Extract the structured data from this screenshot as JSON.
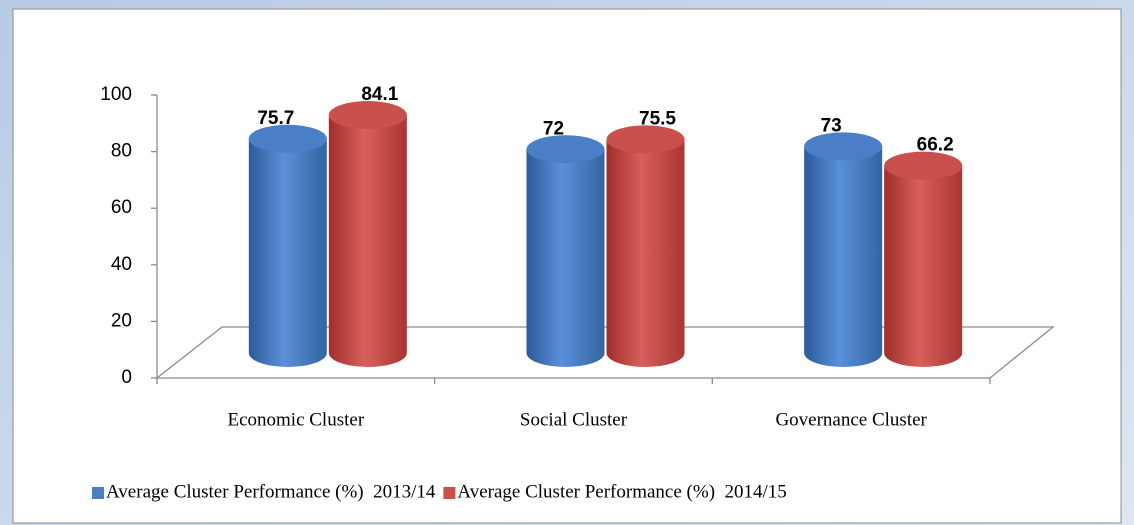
{
  "chart_data": {
    "type": "cylinder-bar",
    "categories": [
      "Economic Cluster",
      "Social Cluster",
      "Governance Cluster"
    ],
    "series": [
      {
        "name": "Average Cluster Performance (%)  2013/14",
        "color": "#4a7fc8",
        "values": [
          75.7,
          72,
          73
        ]
      },
      {
        "name": "Average Cluster Performance (%)  2014/15",
        "color": "#c9504c",
        "values": [
          84.1,
          75.5,
          66.2
        ]
      }
    ],
    "ylim": [
      0,
      100
    ],
    "yticks": [
      0,
      20,
      40,
      60,
      80,
      100
    ],
    "legend": "bottom"
  }
}
